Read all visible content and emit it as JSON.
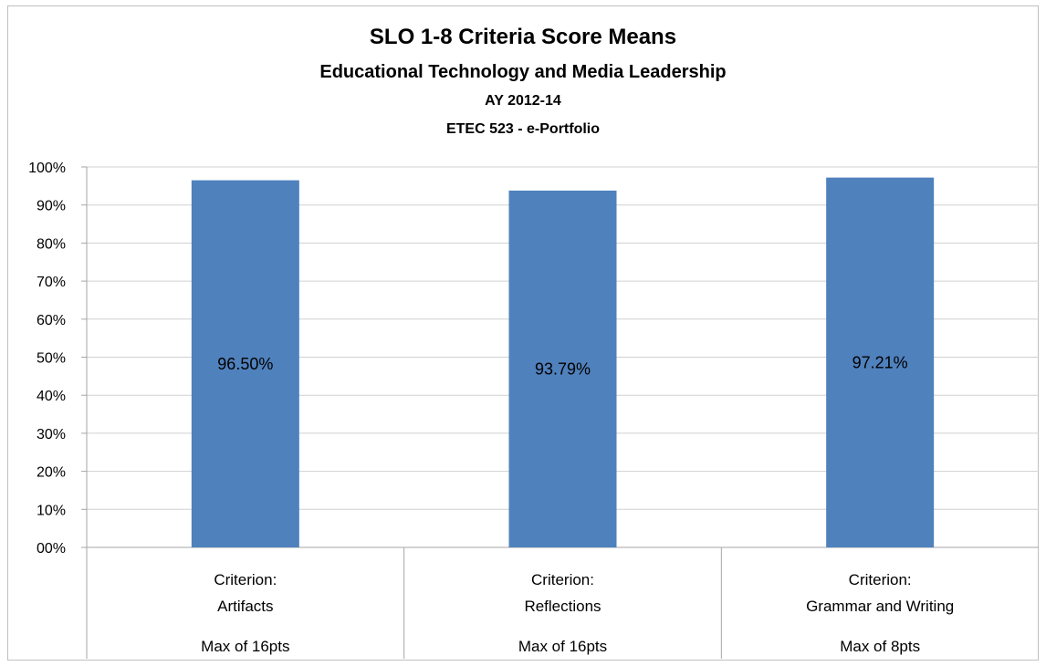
{
  "chart_data": {
    "type": "bar",
    "title": "SLO 1-8 Criteria Score Means",
    "subtitle": "Educational Technology and Media Leadership",
    "subtitle2": "AY 2012-14",
    "subtitle3": "ETEC 523 - e-Portfolio",
    "categories": [
      {
        "line1": "Criterion:",
        "line2": "Artifacts",
        "line3": "Max of 16pts"
      },
      {
        "line1": "Criterion:",
        "line2": "Reflections",
        "line3": "Max of 16pts"
      },
      {
        "line1": "Criterion:",
        "line2": "Grammar and Writing",
        "line3": "Max of 8pts"
      }
    ],
    "values": [
      96.5,
      93.79,
      97.21
    ],
    "data_labels": [
      "96.50%",
      "93.79%",
      "97.21%"
    ],
    "y_ticks": [
      "00%",
      "10%",
      "20%",
      "30%",
      "40%",
      "50%",
      "60%",
      "70%",
      "80%",
      "90%",
      "100%"
    ],
    "ylim": [
      0,
      100
    ],
    "grid": true,
    "bar_color": "#4f81bd",
    "gridline_color": "#d0d0d0"
  }
}
